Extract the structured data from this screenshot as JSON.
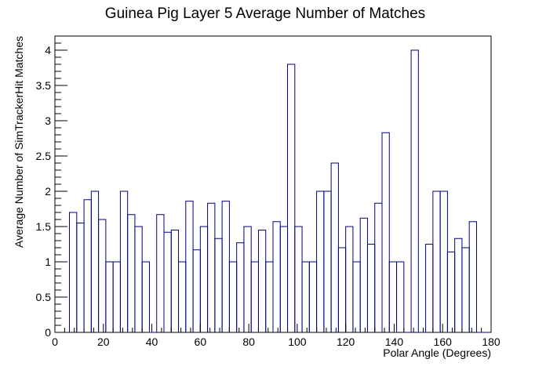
{
  "chart_data": {
    "type": "histogram",
    "title": "Guinea Pig Layer 5 Average Number of Matches",
    "xlabel": "Polar Angle (Degrees)",
    "ylabel": "Average Number of SimTrackerHit Matches",
    "xlim": [
      0,
      180
    ],
    "ylim": [
      0,
      4.2
    ],
    "x_ticks": [
      "0",
      "20",
      "40",
      "60",
      "80",
      "100",
      "120",
      "140",
      "160",
      "180"
    ],
    "y_ticks": [
      "0",
      "0.5",
      "1",
      "1.5",
      "2",
      "2.5",
      "3",
      "3.5",
      "4"
    ],
    "bin_width": 3,
    "bin_edges_start": 0,
    "values": [
      0,
      0,
      1.7,
      1.55,
      1.88,
      2.0,
      1.6,
      1.0,
      1.0,
      2.0,
      1.67,
      1.5,
      1.0,
      0,
      1.67,
      1.42,
      1.45,
      1.0,
      1.86,
      1.17,
      1.5,
      1.83,
      1.33,
      1.86,
      1.0,
      1.27,
      1.5,
      1.0,
      1.45,
      1.0,
      1.57,
      1.5,
      3.8,
      1.5,
      1.0,
      1.0,
      2.0,
      2.0,
      2.4,
      1.2,
      1.5,
      1.0,
      1.62,
      1.25,
      1.83,
      2.83,
      1.0,
      1.0,
      0,
      4.0,
      0,
      1.25,
      2.0,
      2.0,
      1.14,
      1.33,
      1.2,
      1.57,
      0,
      0
    ],
    "line_color": "#000080",
    "grid": false
  }
}
